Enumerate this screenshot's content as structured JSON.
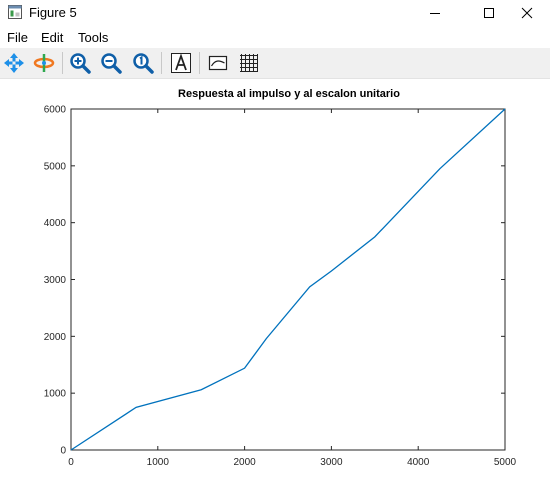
{
  "window": {
    "title": "Figure 5"
  },
  "menu": {
    "file": "File",
    "edit": "Edit",
    "tools": "Tools"
  },
  "toolbar": {
    "tools": [
      "pan-icon",
      "rotate-icon",
      "zoom-in-icon",
      "zoom-out-icon",
      "zoom-reset-icon",
      "text-insert-icon",
      "legend-toggle-icon",
      "grid-toggle-icon"
    ]
  },
  "chart_data": {
    "type": "line",
    "title": "Respuesta al impulso y al escalon unitario",
    "xlabel": "",
    "ylabel": "",
    "xlim": [
      0,
      5000
    ],
    "ylim": [
      0,
      6000
    ],
    "xticks": [
      0,
      1000,
      2000,
      3000,
      4000,
      5000
    ],
    "yticks": [
      0,
      1000,
      2000,
      3000,
      4000,
      5000,
      6000
    ],
    "grid": false,
    "color": "#0072bd",
    "series": [
      {
        "x": [
          0,
          750,
          1500,
          2000,
          2250,
          2750,
          3000,
          3500,
          4250,
          5000
        ],
        "y": [
          0,
          750,
          1060,
          1440,
          1960,
          2870,
          3150,
          3750,
          4950,
          6000
        ]
      }
    ]
  }
}
